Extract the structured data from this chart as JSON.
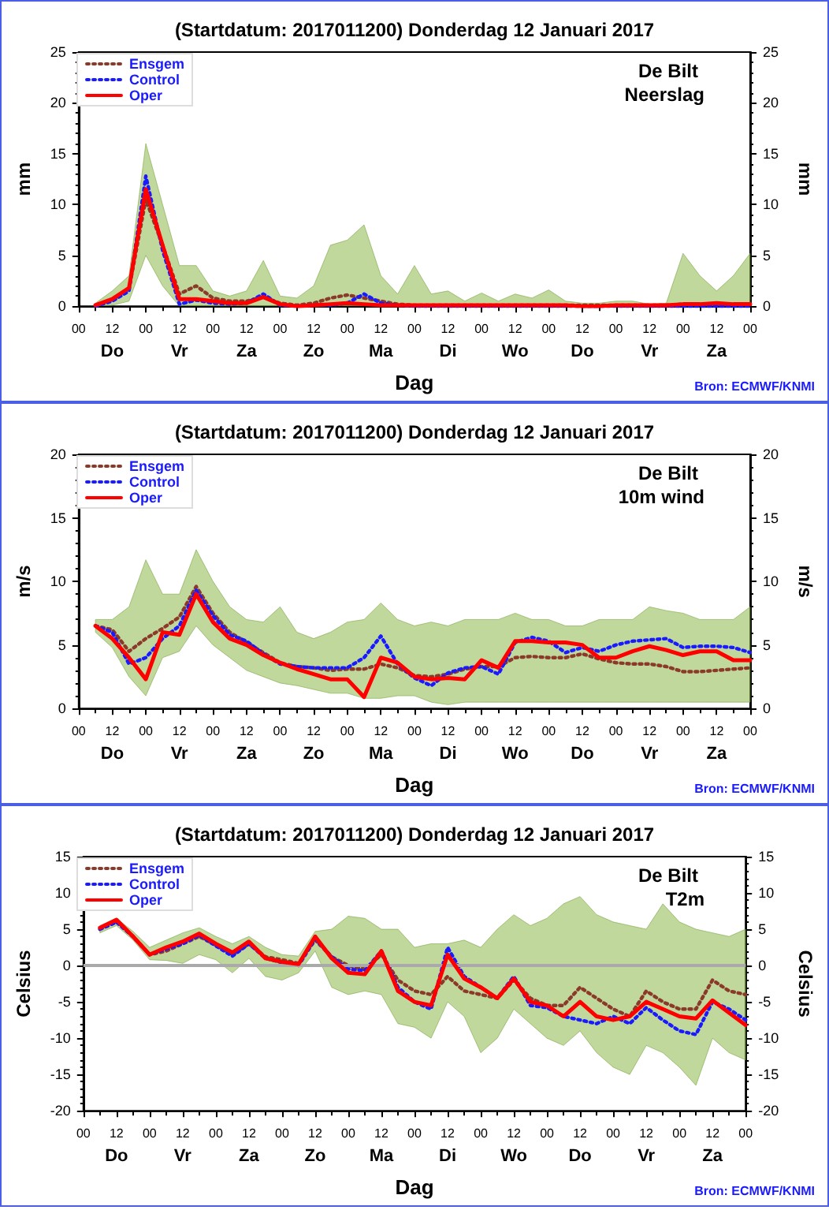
{
  "chart_data": [
    {
      "type": "line",
      "title": "(Startdatum: 2017011200) Donderdag 12 Januari 2017",
      "xlabel": "Dag",
      "ylabel": "mm",
      "y2label": "mm",
      "annotations": [
        "De Bilt",
        "Neerslag",
        "Bron: ECMWF/KNMI"
      ],
      "legend": "top left",
      "marker": "none",
      "grid": false,
      "xlim": [
        "2017-01-12T00:00",
        "2017-01-22T00:00"
      ],
      "xticks": [
        {
          "value": "2017-01-12T00:00",
          "label": "00"
        },
        {
          "value": "2017-01-12T12:00",
          "label": "12\nDo"
        },
        {
          "value": "2017-01-13T00:00",
          "label": "00"
        },
        {
          "value": "2017-01-13T12:00",
          "label": "12\nVr"
        },
        {
          "value": "2017-01-14T00:00",
          "label": "00"
        },
        {
          "value": "2017-01-14T12:00",
          "label": "12\nZa"
        },
        {
          "value": "2017-01-15T00:00",
          "label": "00"
        },
        {
          "value": "2017-01-15T12:00",
          "label": "12\nZo"
        },
        {
          "value": "2017-01-16T00:00",
          "label": "00"
        },
        {
          "value": "2017-01-16T12:00",
          "label": "12\nMa"
        },
        {
          "value": "2017-01-17T00:00",
          "label": "00"
        },
        {
          "value": "2017-01-17T12:00",
          "label": "12\nDi"
        },
        {
          "value": "2017-01-18T00:00",
          "label": "00"
        },
        {
          "value": "2017-01-18T12:00",
          "label": "12\nWo"
        },
        {
          "value": "2017-01-19T00:00",
          "label": "00"
        },
        {
          "value": "2017-01-19T12:00",
          "label": "12\nDo"
        },
        {
          "value": "2017-01-20T00:00",
          "label": "00"
        },
        {
          "value": "2017-01-20T12:00",
          "label": "12\nVr"
        },
        {
          "value": "2017-01-21T00:00",
          "label": "00"
        },
        {
          "value": "2017-01-21T12:00",
          "label": "12\nZa"
        },
        {
          "value": "2017-01-22T00:00",
          "label": "00"
        }
      ],
      "ylim": [
        0,
        25
      ],
      "yticks": [
        0,
        5,
        10,
        15,
        20,
        25
      ],
      "y2lim": [
        0,
        25
      ],
      "y2ticks": [
        0,
        5,
        10,
        15,
        20,
        25
      ],
      "x": [
        "2017-01-12T06:00",
        "2017-01-12T12:00",
        "2017-01-12T18:00",
        "2017-01-13T00:00",
        "2017-01-13T06:00",
        "2017-01-13T12:00",
        "2017-01-13T18:00",
        "2017-01-14T00:00",
        "2017-01-14T06:00",
        "2017-01-14T12:00",
        "2017-01-14T18:00",
        "2017-01-15T00:00",
        "2017-01-15T06:00",
        "2017-01-15T12:00",
        "2017-01-15T18:00",
        "2017-01-16T00:00",
        "2017-01-16T06:00",
        "2017-01-16T12:00",
        "2017-01-16T18:00",
        "2017-01-17T00:00",
        "2017-01-17T06:00",
        "2017-01-17T12:00",
        "2017-01-17T18:00",
        "2017-01-18T00:00",
        "2017-01-18T06:00",
        "2017-01-18T12:00",
        "2017-01-18T18:00",
        "2017-01-19T00:00",
        "2017-01-19T06:00",
        "2017-01-19T12:00",
        "2017-01-19T18:00",
        "2017-01-20T00:00",
        "2017-01-20T06:00",
        "2017-01-20T12:00",
        "2017-01-20T18:00",
        "2017-01-21T00:00",
        "2017-01-21T06:00",
        "2017-01-21T12:00",
        "2017-01-21T18:00",
        "2017-01-22T00:00"
      ],
      "series": [
        {
          "name": "Ensgem",
          "color": "#8b3a2a",
          "line_style": "dotted",
          "values": [
            0.1,
            0.6,
            1.7,
            10.5,
            6,
            1.2,
            2,
            0.8,
            0.5,
            0.5,
            0.9,
            0.3,
            0.1,
            0.3,
            0.8,
            1.1,
            0.8,
            0.5,
            0.2,
            0.1,
            0.1,
            0.1,
            0.1,
            0.1,
            0.1,
            0.1,
            0.1,
            0.1,
            0.1,
            0.1,
            0.1,
            0.1,
            0.1,
            0.1,
            0.1,
            0.2,
            0.2,
            0.2,
            0.2,
            0.2
          ],
          "lower": [
            0,
            0.1,
            0.5,
            5,
            2,
            0,
            0,
            0,
            0,
            0,
            0,
            0,
            0,
            0,
            0,
            0,
            0,
            0,
            0,
            0,
            0,
            0,
            0,
            0,
            0,
            0,
            0,
            0,
            0,
            0,
            0,
            0,
            0,
            0,
            0,
            0,
            0,
            0,
            0,
            0
          ],
          "upper": [
            0.3,
            1.5,
            3,
            16,
            10,
            4,
            4,
            1.5,
            1,
            1.5,
            4.5,
            1,
            0.8,
            2,
            6,
            6.5,
            8,
            3,
            1.2,
            4,
            1.2,
            1.5,
            0.5,
            1.3,
            0.5,
            1.2,
            0.8,
            1.6,
            0.5,
            0.3,
            0.3,
            0.5,
            0.5,
            0.2,
            0.3,
            5.2,
            3,
            1.5,
            3,
            5.2
          ]
        },
        {
          "name": "Control",
          "color": "#1a1aff",
          "line_style": "dotted",
          "values": [
            0,
            0.5,
            1.5,
            12.8,
            5.5,
            0.2,
            0.6,
            0.3,
            0.2,
            0.3,
            1.2,
            0.1,
            0,
            0.1,
            0.1,
            0.3,
            1.2,
            0.3,
            0.1,
            0,
            0,
            0,
            0,
            0,
            0,
            0,
            0,
            0,
            0,
            0,
            0,
            0,
            0,
            0,
            0,
            0,
            0,
            0,
            0,
            0
          ]
        },
        {
          "name": "Oper",
          "color": "#ff0000",
          "line_style": "solid",
          "values": [
            0.1,
            0.7,
            1.8,
            11.5,
            6,
            0.7,
            0.7,
            0.5,
            0.3,
            0.3,
            0.9,
            0.2,
            0,
            0.1,
            0.2,
            0.3,
            0.2,
            0.1,
            0.1,
            0.1,
            0.1,
            0.1,
            0.1,
            0.1,
            0.1,
            0.1,
            0.1,
            0.1,
            0.1,
            0,
            0,
            0.1,
            0.1,
            0.1,
            0.1,
            0.2,
            0.2,
            0.3,
            0.2,
            0.2
          ]
        }
      ]
    },
    {
      "type": "line",
      "title": "(Startdatum: 2017011200) Donderdag 12 Januari 2017",
      "xlabel": "Dag",
      "ylabel": "m/s",
      "y2label": "m/s",
      "annotations": [
        "De Bilt",
        "10m wind",
        "Bron: ECMWF/KNMI"
      ],
      "legend": "top left",
      "marker": "none",
      "grid": false,
      "xlim": [
        "2017-01-12T00:00",
        "2017-01-22T00:00"
      ],
      "xticks": [
        {
          "value": "2017-01-12T00:00",
          "label": "00"
        },
        {
          "value": "2017-01-12T12:00",
          "label": "12\nDo"
        },
        {
          "value": "2017-01-13T00:00",
          "label": "00"
        },
        {
          "value": "2017-01-13T12:00",
          "label": "12\nVr"
        },
        {
          "value": "2017-01-14T00:00",
          "label": "00"
        },
        {
          "value": "2017-01-14T12:00",
          "label": "12\nZa"
        },
        {
          "value": "2017-01-15T00:00",
          "label": "00"
        },
        {
          "value": "2017-01-15T12:00",
          "label": "12\nZo"
        },
        {
          "value": "2017-01-16T00:00",
          "label": "00"
        },
        {
          "value": "2017-01-16T12:00",
          "label": "12\nMa"
        },
        {
          "value": "2017-01-17T00:00",
          "label": "00"
        },
        {
          "value": "2017-01-17T12:00",
          "label": "12\nDi"
        },
        {
          "value": "2017-01-18T00:00",
          "label": "00"
        },
        {
          "value": "2017-01-18T12:00",
          "label": "12\nWo"
        },
        {
          "value": "2017-01-19T00:00",
          "label": "00"
        },
        {
          "value": "2017-01-19T12:00",
          "label": "12\nDo"
        },
        {
          "value": "2017-01-20T00:00",
          "label": "00"
        },
        {
          "value": "2017-01-20T12:00",
          "label": "12\nVr"
        },
        {
          "value": "2017-01-21T00:00",
          "label": "00"
        },
        {
          "value": "2017-01-21T12:00",
          "label": "12\nZa"
        },
        {
          "value": "2017-01-22T00:00",
          "label": "00"
        }
      ],
      "ylim": [
        0,
        20
      ],
      "yticks": [
        0,
        5,
        10,
        15,
        20
      ],
      "y2lim": [
        0,
        20
      ],
      "y2ticks": [
        0,
        5,
        10,
        15,
        20
      ],
      "x": [
        "2017-01-12T06:00",
        "2017-01-12T12:00",
        "2017-01-12T18:00",
        "2017-01-13T00:00",
        "2017-01-13T06:00",
        "2017-01-13T12:00",
        "2017-01-13T18:00",
        "2017-01-14T00:00",
        "2017-01-14T06:00",
        "2017-01-14T12:00",
        "2017-01-14T18:00",
        "2017-01-15T00:00",
        "2017-01-15T06:00",
        "2017-01-15T12:00",
        "2017-01-15T18:00",
        "2017-01-16T00:00",
        "2017-01-16T06:00",
        "2017-01-16T12:00",
        "2017-01-16T18:00",
        "2017-01-17T00:00",
        "2017-01-17T06:00",
        "2017-01-17T12:00",
        "2017-01-17T18:00",
        "2017-01-18T00:00",
        "2017-01-18T06:00",
        "2017-01-18T12:00",
        "2017-01-18T18:00",
        "2017-01-19T00:00",
        "2017-01-19T06:00",
        "2017-01-19T12:00",
        "2017-01-19T18:00",
        "2017-01-20T00:00",
        "2017-01-20T06:00",
        "2017-01-20T12:00",
        "2017-01-20T18:00",
        "2017-01-21T00:00",
        "2017-01-21T06:00",
        "2017-01-21T12:00",
        "2017-01-21T18:00",
        "2017-01-22T00:00"
      ],
      "series": [
        {
          "name": "Ensgem",
          "color": "#8b3a2a",
          "line_style": "dotted",
          "values": [
            6.5,
            6.2,
            4.5,
            5.5,
            6.3,
            7.2,
            9.6,
            7.5,
            6,
            5.2,
            4.4,
            3.6,
            3.3,
            3.2,
            3.0,
            3.1,
            3.1,
            3.5,
            3.2,
            2.6,
            2.5,
            2.7,
            3.1,
            3.3,
            3.3,
            4.0,
            4.1,
            4.0,
            4.0,
            4.3,
            3.9,
            3.6,
            3.5,
            3.5,
            3.3,
            2.9,
            2.9,
            3.0,
            3.1,
            3.2
          ],
          "lower": [
            6,
            4.8,
            2.5,
            1,
            4,
            4.5,
            6.5,
            5,
            4,
            3,
            2.5,
            2,
            1.8,
            1.5,
            1.2,
            1.2,
            0.8,
            0.8,
            1,
            1,
            0.5,
            0.3,
            0.5,
            0.5,
            0.5,
            0.5,
            0.5,
            0.5,
            0.5,
            0.5,
            0.5,
            0.5,
            0.5,
            0.5,
            0.5,
            0.5,
            0.5,
            0.5,
            0.5,
            0.5
          ],
          "upper": [
            7,
            7,
            8,
            11.7,
            9,
            9,
            12.5,
            10,
            8,
            7,
            6.8,
            8,
            6,
            5.5,
            6,
            6.8,
            7,
            8.3,
            7,
            6.5,
            6.8,
            6.5,
            7,
            7,
            7,
            7.5,
            7,
            7,
            6.5,
            6.5,
            7,
            7,
            7,
            8,
            7.7,
            7.5,
            7,
            7,
            7,
            8
          ]
        },
        {
          "name": "Control",
          "color": "#1a1aff",
          "line_style": "dotted",
          "values": [
            6.5,
            6,
            3.5,
            4,
            5.5,
            6.5,
            9.3,
            7.3,
            5.8,
            5.3,
            4.3,
            3.5,
            3.3,
            3.2,
            3.2,
            3.2,
            4,
            5.7,
            3.5,
            2.4,
            1.8,
            2.8,
            3.2,
            3.3,
            2.7,
            5.2,
            5.6,
            5.3,
            4.4,
            4.8,
            4.5,
            5.0,
            5.3,
            5.4,
            5.5,
            4.8,
            4.9,
            4.9,
            4.8,
            4.4
          ]
        },
        {
          "name": "Oper",
          "color": "#ff0000",
          "line_style": "solid",
          "values": [
            6.5,
            5.5,
            4,
            2.3,
            6,
            5.8,
            9,
            6.8,
            5.5,
            5,
            4.2,
            3.6,
            3.1,
            2.7,
            2.3,
            2.3,
            0.9,
            4,
            3.6,
            2.5,
            2.3,
            2.4,
            2.3,
            3.8,
            3.2,
            5.3,
            5.3,
            5.2,
            5.2,
            5.0,
            4.0,
            4.0,
            4.5,
            4.9,
            4.6,
            4.2,
            4.5,
            4.5,
            3.8,
            3.8
          ]
        }
      ]
    },
    {
      "type": "line",
      "title": "(Startdatum: 2017011200) Donderdag 12 Januari 2017",
      "xlabel": "Dag",
      "ylabel": "Celsius",
      "y2label": "Celsius",
      "annotations": [
        "De Bilt",
        "T2m",
        "Bron: ECMWF/KNMI"
      ],
      "legend": "top left",
      "marker": "none",
      "grid": false,
      "xlim": [
        "2017-01-12T00:00",
        "2017-01-22T00:00"
      ],
      "xticks": [
        {
          "value": "2017-01-12T00:00",
          "label": "00"
        },
        {
          "value": "2017-01-12T12:00",
          "label": "12\nDo"
        },
        {
          "value": "2017-01-13T00:00",
          "label": "00"
        },
        {
          "value": "2017-01-13T12:00",
          "label": "12\nVr"
        },
        {
          "value": "2017-01-14T00:00",
          "label": "00"
        },
        {
          "value": "2017-01-14T12:00",
          "label": "12\nZa"
        },
        {
          "value": "2017-01-15T00:00",
          "label": "00"
        },
        {
          "value": "2017-01-15T12:00",
          "label": "12\nZo"
        },
        {
          "value": "2017-01-16T00:00",
          "label": "00"
        },
        {
          "value": "2017-01-16T12:00",
          "label": "12\nMa"
        },
        {
          "value": "2017-01-17T00:00",
          "label": "00"
        },
        {
          "value": "2017-01-17T12:00",
          "label": "12\nDi"
        },
        {
          "value": "2017-01-18T00:00",
          "label": "00"
        },
        {
          "value": "2017-01-18T12:00",
          "label": "12\nWo"
        },
        {
          "value": "2017-01-19T00:00",
          "label": "00"
        },
        {
          "value": "2017-01-19T12:00",
          "label": "12\nDo"
        },
        {
          "value": "2017-01-20T00:00",
          "label": "00"
        },
        {
          "value": "2017-01-20T12:00",
          "label": "12\nVr"
        },
        {
          "value": "2017-01-21T00:00",
          "label": "00"
        },
        {
          "value": "2017-01-21T12:00",
          "label": "12\nZa"
        },
        {
          "value": "2017-01-22T00:00",
          "label": "00"
        }
      ],
      "ylim": [
        -20,
        15
      ],
      "yticks": [
        -20,
        -15,
        -10,
        -5,
        0,
        5,
        10,
        15
      ],
      "y2lim": [
        -20,
        15
      ],
      "y2ticks": [
        -20,
        -15,
        -10,
        -5,
        0,
        5,
        10,
        15
      ],
      "ref_lines": [
        {
          "axis": "y",
          "value": 0,
          "color": "#aaaaaa"
        }
      ],
      "x": [
        "2017-01-12T06:00",
        "2017-01-12T12:00",
        "2017-01-12T18:00",
        "2017-01-13T00:00",
        "2017-01-13T06:00",
        "2017-01-13T12:00",
        "2017-01-13T18:00",
        "2017-01-14T00:00",
        "2017-01-14T06:00",
        "2017-01-14T12:00",
        "2017-01-14T18:00",
        "2017-01-15T00:00",
        "2017-01-15T06:00",
        "2017-01-15T12:00",
        "2017-01-15T18:00",
        "2017-01-16T00:00",
        "2017-01-16T06:00",
        "2017-01-16T12:00",
        "2017-01-16T18:00",
        "2017-01-17T00:00",
        "2017-01-17T06:00",
        "2017-01-17T12:00",
        "2017-01-17T18:00",
        "2017-01-18T00:00",
        "2017-01-18T06:00",
        "2017-01-18T12:00",
        "2017-01-18T18:00",
        "2017-01-19T00:00",
        "2017-01-19T06:00",
        "2017-01-19T12:00",
        "2017-01-19T18:00",
        "2017-01-20T00:00",
        "2017-01-20T06:00",
        "2017-01-20T12:00",
        "2017-01-20T18:00",
        "2017-01-21T00:00",
        "2017-01-21T06:00",
        "2017-01-21T12:00",
        "2017-01-21T18:00",
        "2017-01-22T00:00"
      ],
      "series": [
        {
          "name": "Ensgem",
          "color": "#8b3a2a",
          "line_style": "dotted",
          "values": [
            5,
            6,
            4,
            1.5,
            2,
            3,
            4,
            2.8,
            1.5,
            3,
            1.2,
            0.8,
            0.3,
            3.5,
            1.2,
            0,
            -0.5,
            1.5,
            -2,
            -3.5,
            -4,
            -1.5,
            -3.5,
            -4,
            -4.5,
            -2,
            -4.5,
            -5.5,
            -5.5,
            -3,
            -4.5,
            -6,
            -7,
            -3.5,
            -5,
            -6,
            -6,
            -2,
            -3.5,
            -4
          ],
          "lower": [
            4.5,
            5.5,
            3.5,
            0.8,
            0.7,
            0.3,
            1.5,
            0.8,
            -1,
            1,
            -1.5,
            -2,
            -1,
            2,
            -3,
            -4,
            -3.5,
            -4,
            -8,
            -8.5,
            -10,
            -5,
            -7,
            -12,
            -10,
            -6,
            -8,
            -10,
            -11,
            -9,
            -12,
            -14,
            -15,
            -11,
            -12,
            -14,
            -16.5,
            -10,
            -12,
            -13
          ],
          "upper": [
            5.5,
            6.5,
            4.7,
            2.5,
            3.5,
            4.5,
            5.2,
            4,
            3,
            4,
            2.5,
            1.5,
            1.3,
            4.7,
            5,
            6.8,
            6.5,
            5,
            5,
            2.5,
            3,
            3,
            3.5,
            2.5,
            5,
            7,
            5.5,
            6.5,
            8.5,
            9.5,
            7,
            6,
            5.5,
            5,
            8.5,
            6,
            5,
            4.5,
            4,
            5
          ]
        },
        {
          "name": "Control",
          "color": "#1a1aff",
          "line_style": "dotted",
          "values": [
            5,
            6,
            4,
            1.5,
            2.3,
            3,
            4.2,
            2.7,
            1.3,
            3,
            1,
            0.4,
            0,
            3.7,
            1.2,
            -0.5,
            -0.7,
            2,
            -3,
            -5,
            -6,
            2.5,
            -1.5,
            -3,
            -4.5,
            -1.5,
            -5.5,
            -5.8,
            -7,
            -7.5,
            -8,
            -7,
            -8,
            -5.8,
            -7.5,
            -9,
            -9.5,
            -5,
            -6,
            -7.5
          ]
        },
        {
          "name": "Oper",
          "color": "#ff0000",
          "line_style": "solid",
          "values": [
            5.2,
            6.3,
            4,
            1.5,
            2.5,
            3.3,
            4.4,
            3.0,
            1.8,
            3.3,
            1.0,
            0.5,
            0.2,
            4.0,
            1.0,
            -1.0,
            -1.2,
            2.0,
            -3.5,
            -5.0,
            -5.5,
            1.5,
            -1.8,
            -3,
            -4.5,
            -1.8,
            -5,
            -5.5,
            -7,
            -5,
            -7,
            -7.5,
            -7,
            -5,
            -6,
            -7,
            -7.3,
            -4.8,
            -6.5,
            -8.2
          ]
        }
      ]
    }
  ]
}
